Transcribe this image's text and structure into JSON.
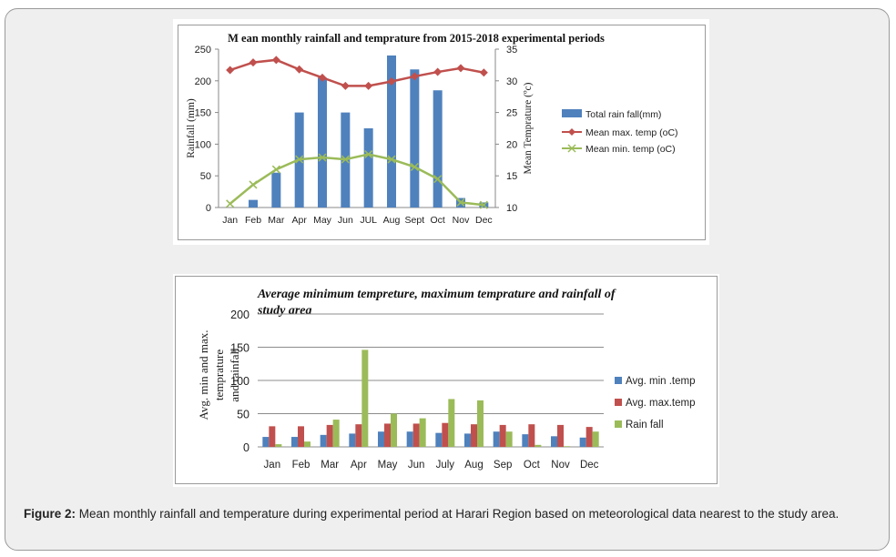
{
  "caption": {
    "label": "Figure 2:",
    "text": " Mean monthly rainfall and temperature during experimental period at Harari Region based on meteorological data nearest to the study area."
  },
  "chart_data": [
    {
      "type": "bar",
      "title": "M ean monthly rainfall and temprature from 2015-2018 experimental periods",
      "ylabel": "Rainfall (mm)",
      "y2label": "Mean Temprature (ºc)",
      "categories": [
        "Jan",
        "Feb",
        "Mar",
        "Apr",
        "May",
        "Jun",
        "JUL",
        "Aug",
        "Sept",
        "Oct",
        "Nov",
        "Dec"
      ],
      "ylim": [
        0,
        250
      ],
      "yticks": [
        0,
        50,
        100,
        150,
        200,
        250
      ],
      "y2lim": [
        10,
        35
      ],
      "y2ticks": [
        10,
        15,
        20,
        25,
        30,
        35
      ],
      "legend_position": "right",
      "series": [
        {
          "name": "Total rain fall(mm)",
          "type": "bar",
          "axis": "left",
          "color": "#4f81bd",
          "values": [
            0,
            12,
            55,
            150,
            205,
            150,
            125,
            240,
            218,
            185,
            15,
            8
          ]
        },
        {
          "name": "Mean max. temp (oC)",
          "type": "line",
          "axis": "right",
          "color": "#c0504d",
          "marker": "diamond",
          "values": [
            31.7,
            32.9,
            33.3,
            31.8,
            30.5,
            29.2,
            29.2,
            29.9,
            30.7,
            31.4,
            32.0,
            31.3
          ]
        },
        {
          "name": "Mean min. temp (oC)",
          "type": "line",
          "axis": "right",
          "color": "#9bbb59",
          "marker": "x",
          "values": [
            10.6,
            13.6,
            16.0,
            17.6,
            17.9,
            17.6,
            18.4,
            17.6,
            16.4,
            14.5,
            10.8,
            10.4
          ]
        }
      ]
    },
    {
      "type": "bar",
      "title": "Average minimum tempreture, maximum temprature and rainfall of study area",
      "ylabel": "Avg. min and max. temprature and rainfall",
      "categories": [
        "Jan",
        "Feb",
        "Mar",
        "Apr",
        "May",
        "Jun",
        "July",
        "Aug",
        "Sep",
        "Oct",
        "Nov",
        "Dec"
      ],
      "ylim": [
        0,
        200
      ],
      "yticks": [
        0,
        50,
        100,
        150,
        200
      ],
      "grid": true,
      "legend_position": "right",
      "series": [
        {
          "name": "Avg. min .temp",
          "color": "#4f81bd",
          "values": [
            15,
            15,
            18,
            20,
            23,
            23,
            21,
            20,
            23,
            19,
            16,
            14
          ]
        },
        {
          "name": "Avg. max.temp",
          "color": "#c0504d",
          "values": [
            31,
            31,
            33,
            34,
            35,
            35,
            36,
            34,
            33,
            34,
            33,
            30
          ]
        },
        {
          "name": "Rain fall",
          "color": "#9bbb59",
          "values": [
            4,
            8,
            41,
            146,
            50,
            43,
            72,
            70,
            23,
            3,
            1,
            23
          ]
        }
      ]
    }
  ]
}
